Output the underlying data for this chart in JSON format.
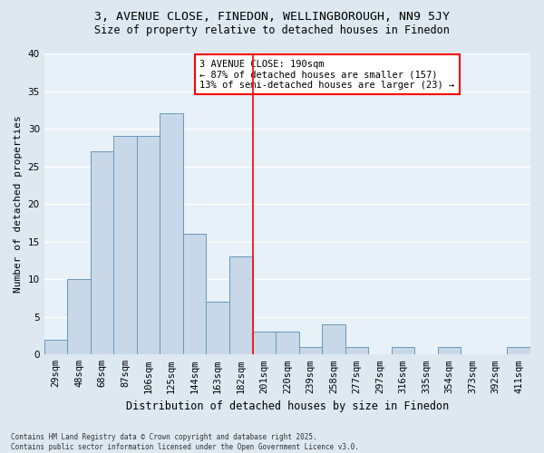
{
  "title1": "3, AVENUE CLOSE, FINEDON, WELLINGBOROUGH, NN9 5JY",
  "title2": "Size of property relative to detached houses in Finedon",
  "xlabel": "Distribution of detached houses by size in Finedon",
  "ylabel": "Number of detached properties",
  "footnote1": "Contains HM Land Registry data © Crown copyright and database right 2025.",
  "footnote2": "Contains public sector information licensed under the Open Government Licence v3.0.",
  "annotation_line1": "3 AVENUE CLOSE: 190sqm",
  "annotation_line2": "← 87% of detached houses are smaller (157)",
  "annotation_line3": "13% of semi-detached houses are larger (23) →",
  "bar_labels": [
    "29sqm",
    "48sqm",
    "68sqm",
    "87sqm",
    "106sqm",
    "125sqm",
    "144sqm",
    "163sqm",
    "182sqm",
    "201sqm",
    "220sqm",
    "239sqm",
    "258sqm",
    "277sqm",
    "297sqm",
    "316sqm",
    "335sqm",
    "354sqm",
    "373sqm",
    "392sqm",
    "411sqm"
  ],
  "bar_values": [
    2,
    10,
    27,
    29,
    29,
    32,
    16,
    7,
    13,
    3,
    3,
    1,
    4,
    1,
    0,
    1,
    0,
    1,
    0,
    0,
    1
  ],
  "bar_color": "#c8d8e8",
  "bar_edge_color": "#6699bb",
  "bg_color": "#dde8f0",
  "plot_bg_color": "#e8f0f8",
  "grid_color": "#ffffff",
  "vline_color": "red",
  "vline_index": 8.5,
  "ylim": [
    0,
    40
  ],
  "yticks": [
    0,
    5,
    10,
    15,
    20,
    25,
    30,
    35,
    40
  ],
  "title1_fontsize": 9.5,
  "title2_fontsize": 8.5,
  "xlabel_fontsize": 8.5,
  "ylabel_fontsize": 8.0,
  "tick_fontsize": 7.5,
  "annot_fontsize": 7.5,
  "footnote_fontsize": 5.5
}
